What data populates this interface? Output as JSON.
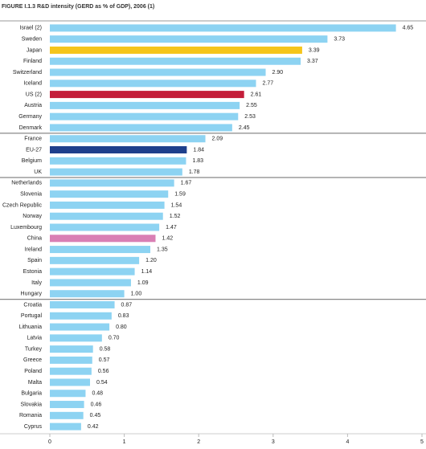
{
  "chart_data": {
    "type": "hbar",
    "title": "FIGURE I.1.3  R&D intensity (GERD as % of GDP), 2006 (1)",
    "categories": [
      "Israel (2)",
      "Sweden",
      "Japan",
      "Finland",
      "Switzerland",
      "Iceland",
      "US (2)",
      "Austria",
      "Germany",
      "Denmark",
      "France",
      "EU-27",
      "Belgium",
      "UK",
      "Netherlands",
      "Slovenia",
      "Czech Republic",
      "Norway",
      "Luxembourg",
      "China",
      "Ireland",
      "Spain",
      "Estonia",
      "Italy",
      "Hungary",
      "Croatia",
      "Portugal",
      "Lithuania",
      "Latvia",
      "Turkey",
      "Greece",
      "Poland",
      "Malta",
      "Bulgaria",
      "Slovakia",
      "Romania",
      "Cyprus"
    ],
    "values": [
      4.65,
      3.73,
      3.39,
      3.37,
      2.9,
      2.77,
      2.61,
      2.55,
      2.53,
      2.45,
      2.09,
      1.84,
      1.83,
      1.78,
      1.67,
      1.59,
      1.54,
      1.52,
      1.47,
      1.42,
      1.35,
      1.2,
      1.14,
      1.09,
      1.0,
      0.87,
      0.83,
      0.8,
      0.7,
      0.58,
      0.57,
      0.56,
      0.54,
      0.48,
      0.46,
      0.45,
      0.42
    ],
    "value_labels": [
      "4.65",
      "3.73",
      "3.39",
      "3.37",
      "2.90",
      "2.77",
      "2.61",
      "2.55",
      "2.53",
      "2.45",
      "2.09",
      "1.84",
      "1.83",
      "1.78",
      "1.67",
      "1.59",
      "1.54",
      "1.52",
      "1.47",
      "1.42",
      "1.35",
      "1.20",
      "1.14",
      "1.09",
      "1.00",
      "0.87",
      "0.83",
      "0.80",
      "0.70",
      "0.58",
      "0.57",
      "0.56",
      "0.54",
      "0.48",
      "0.46",
      "0.45",
      "0.42"
    ],
    "colors": [
      "#8dd3f2",
      "#8dd3f2",
      "#f5c51b",
      "#8dd3f2",
      "#8dd3f2",
      "#8dd3f2",
      "#c41e3a",
      "#8dd3f2",
      "#8dd3f2",
      "#8dd3f2",
      "#8dd3f2",
      "#1e3f8c",
      "#8dd3f2",
      "#8dd3f2",
      "#8dd3f2",
      "#8dd3f2",
      "#8dd3f2",
      "#8dd3f2",
      "#8dd3f2",
      "#d97fb4",
      "#8dd3f2",
      "#8dd3f2",
      "#8dd3f2",
      "#8dd3f2",
      "#8dd3f2",
      "#8dd3f2",
      "#8dd3f2",
      "#8dd3f2",
      "#8dd3f2",
      "#8dd3f2",
      "#8dd3f2",
      "#8dd3f2",
      "#8dd3f2",
      "#8dd3f2",
      "#8dd3f2",
      "#8dd3f2",
      "#8dd3f2"
    ],
    "separators_after": [
      9,
      13,
      24
    ],
    "xlim": [
      0,
      5
    ],
    "xticks": [
      0,
      1,
      2,
      3,
      4,
      5
    ]
  }
}
